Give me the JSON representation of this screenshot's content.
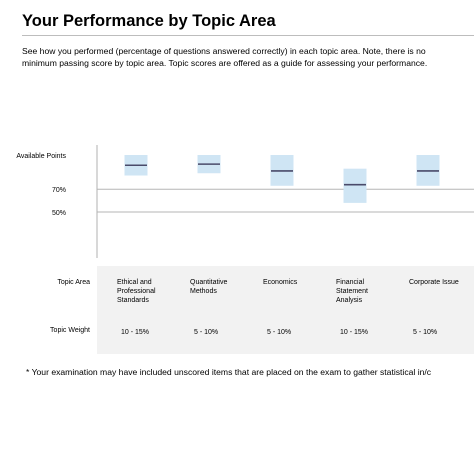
{
  "page": {
    "title": "Your Performance by Topic Area",
    "description_line1": "See how you performed (percentage of questions answered correctly) in each topic area. Note, there is no",
    "description_line2": "minimum passing score by topic area. Topic scores are offered as a guide for assessing your performance.",
    "footnote": "* Your examination may have included unscored items that are placed on the exam to gather statistical in/c"
  },
  "table": {
    "topic_area_label": "Topic Area",
    "topic_weight_label": "Topic Weight"
  },
  "colors": {
    "band_fill": "#cfe5f4",
    "marker": "#4a4a6a",
    "gridline": "#b5b5b5",
    "axis": "#b0b0b0"
  },
  "chart_data": {
    "type": "range-bar",
    "title": "",
    "ylabel": "",
    "yticks": [
      {
        "label": "Available Points",
        "value": 100
      },
      {
        "label": "70%",
        "value": 70
      },
      {
        "label": "50%",
        "value": 50
      }
    ],
    "gridlines": [
      70,
      50
    ],
    "categories": [
      {
        "label_lines": [
          "Ethical and",
          "Professional",
          "Standards"
        ],
        "weight": "10 - 15%",
        "low": 82,
        "high": 100,
        "score": 91
      },
      {
        "label_lines": [
          "Quantitative",
          "Methods"
        ],
        "weight": "5 - 10%",
        "low": 84,
        "high": 100,
        "score": 92
      },
      {
        "label_lines": [
          "Economics"
        ],
        "weight": "5 - 10%",
        "low": 73,
        "high": 100,
        "score": 86
      },
      {
        "label_lines": [
          "Financial",
          "Statement",
          "Analysis"
        ],
        "weight": "10 - 15%",
        "low": 58,
        "high": 88,
        "score": 74
      },
      {
        "label_lines": [
          "Corporate Issue"
        ],
        "weight": "5 - 10%",
        "low": 73,
        "high": 100,
        "score": 86
      }
    ]
  }
}
